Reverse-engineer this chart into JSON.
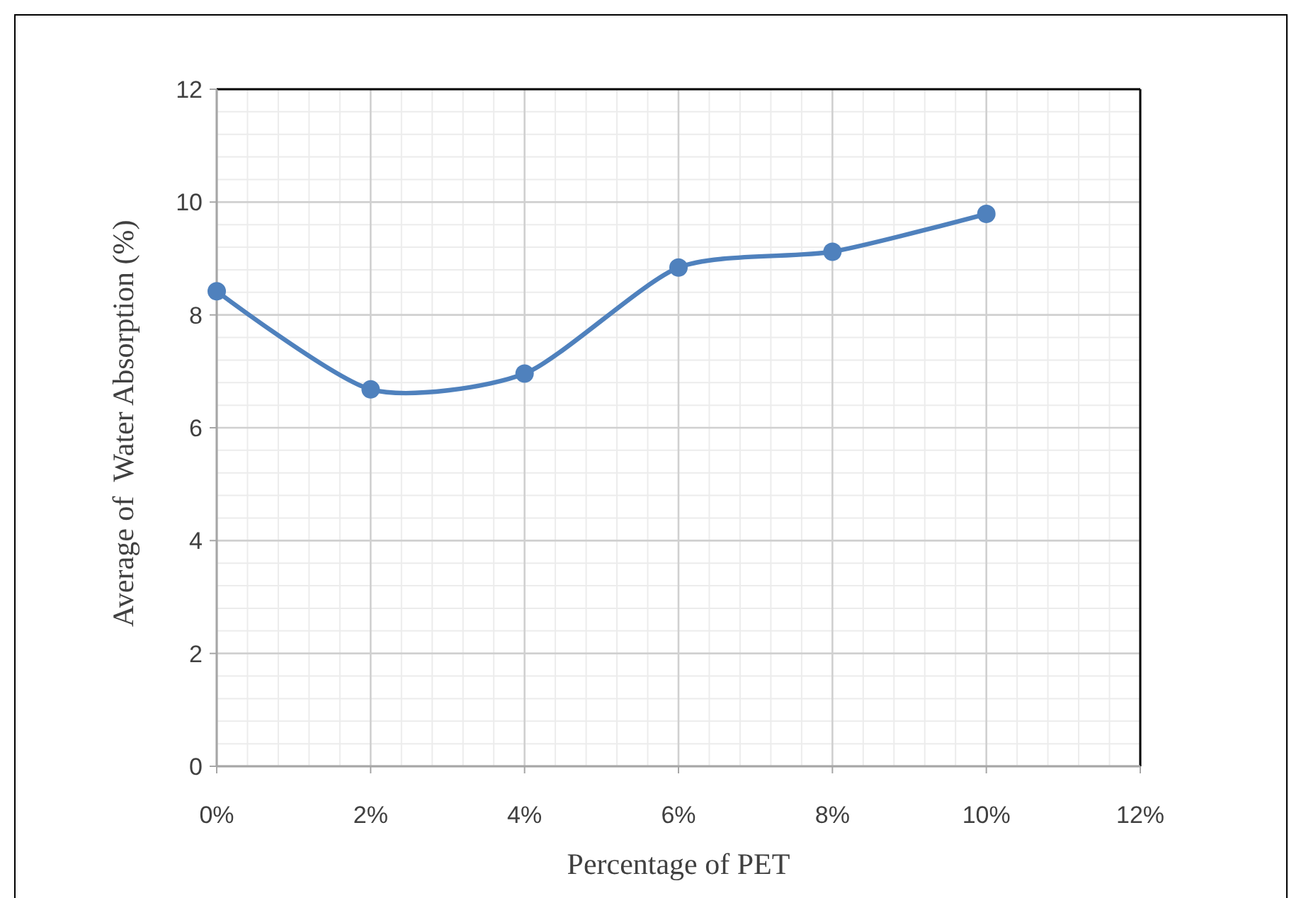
{
  "chart_data": {
    "type": "line",
    "xlabel": "Percentage of PET",
    "ylabel": "Average of  Water Absorption (%)",
    "x": [
      0,
      2,
      4,
      6,
      8,
      10
    ],
    "series": [
      {
        "color": "#4f81bd",
        "values": [
          8.42,
          6.68,
          6.96,
          8.84,
          9.12,
          9.79
        ]
      }
    ],
    "xlim": [
      0,
      12
    ],
    "xticks": [
      {
        "value": 0,
        "label": "0%"
      },
      {
        "value": 2,
        "label": "2%"
      },
      {
        "value": 4,
        "label": "4%"
      },
      {
        "value": 6,
        "label": "6%"
      },
      {
        "value": 8,
        "label": "8%"
      },
      {
        "value": 10,
        "label": "10%"
      },
      {
        "value": 12,
        "label": "12%"
      }
    ],
    "ylim": [
      0,
      12
    ],
    "yticks": [
      0,
      2,
      4,
      6,
      8,
      10,
      12
    ],
    "grid": true,
    "marker": "circle",
    "line_style": "solid"
  }
}
